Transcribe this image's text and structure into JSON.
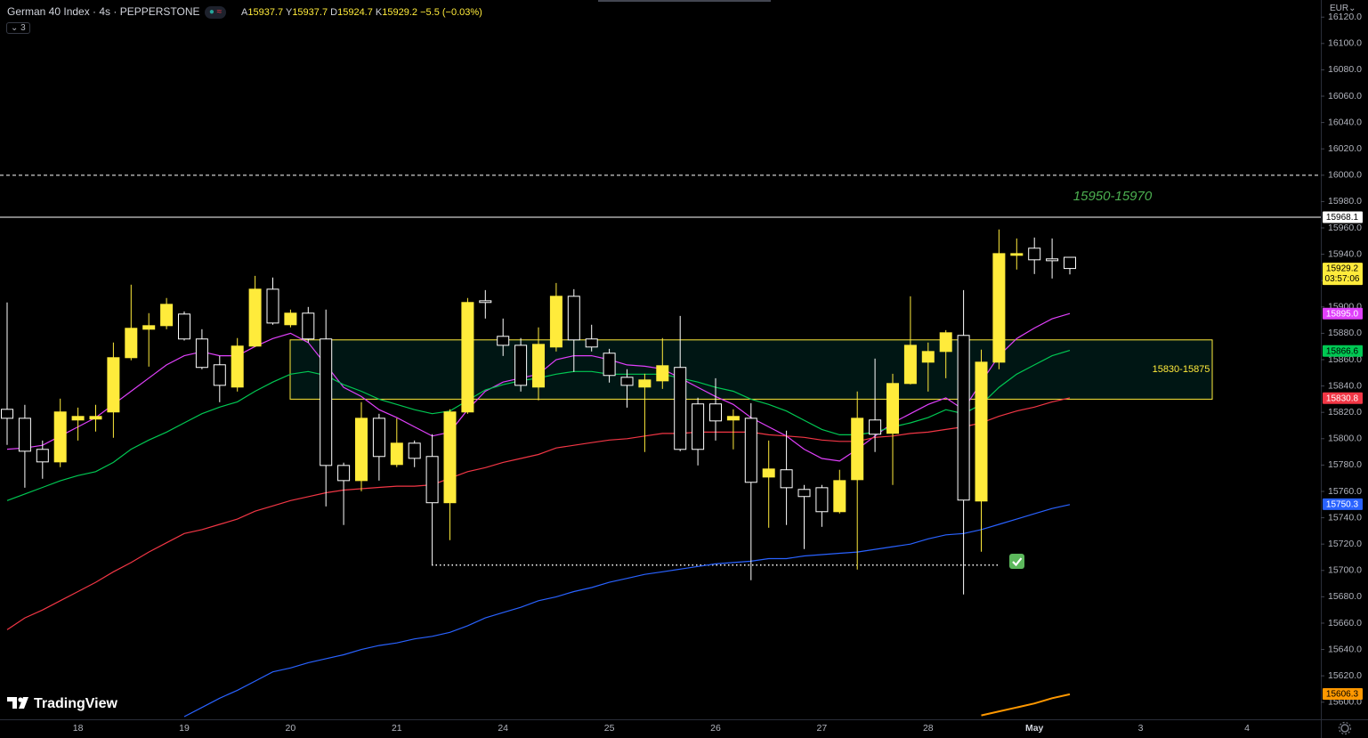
{
  "header": {
    "symbol": "German 40 Index · 4s · PEPPERSTONE",
    "ohlc": [
      {
        "key": "A",
        "value": "15937.7"
      },
      {
        "key": "Y",
        "value": "15937.7"
      },
      {
        "key": "D",
        "value": "15924.7"
      },
      {
        "key": "K",
        "value": "15929.2"
      }
    ],
    "change": "−5.5 (−0.03%)",
    "indicators": "3",
    "currency": "EUR",
    "logo": "TradingView"
  },
  "chart_data": {
    "type": "candlestick",
    "categories": [
      null,
      null,
      null,
      null,
      "18",
      null,
      null,
      null,
      null,
      null,
      "19",
      null,
      null,
      null,
      null,
      null,
      "20",
      null,
      null,
      null,
      null,
      null,
      "21",
      null,
      null,
      null,
      null,
      null,
      "24",
      null,
      null,
      null,
      null,
      null,
      "25",
      null,
      null,
      null,
      null,
      null,
      "26",
      null,
      null,
      null,
      null,
      null,
      "27",
      null,
      null,
      null,
      null,
      null,
      "28",
      null,
      null,
      null,
      null,
      null,
      "May",
      null,
      null,
      null,
      null,
      null,
      "3",
      null,
      null,
      null,
      null,
      null,
      "4",
      null,
      null,
      null
    ],
    "candles": {
      "up_color": "#ffeb3b",
      "down_color": "#ffffff",
      "open": [
        15822.3,
        15815.5,
        15791.9,
        15782.4,
        15814.2,
        15814.9,
        15820.3,
        15861.5,
        15883.1,
        15885.8,
        15894.6,
        15875.7,
        15856.1,
        15839.2,
        15870.3,
        15913.5,
        15886.5,
        15895.3,
        15875.7,
        15779.7,
        15768.2,
        15815.5,
        15780.4,
        15796.6,
        15786.5,
        15751.4,
        15820.3,
        15904.7,
        15877.7,
        15870.9,
        15839.2,
        15869.6,
        15908.1,
        15875.7,
        15864.9,
        15846.6,
        15839.2,
        15843.9,
        15854.1,
        15826.4,
        15826.4,
        15814.2,
        15815.5,
        15770.9,
        15776.4,
        15761.5,
        15762.8,
        15744.6,
        15768.9,
        15814.2,
        15804.1,
        15841.9,
        15858.1,
        15866.2,
        15878.4,
        15752.7,
        15858.1,
        15939.2,
        15944.6,
        15936.5,
        15937.7,
        null,
        null,
        null,
        null,
        null,
        null,
        null,
        null,
        null,
        null,
        null,
        null,
        null
      ],
      "high": [
        15903.4,
        15825.7,
        15798.6,
        15830.4,
        15823.6,
        15825.7,
        15873.0,
        15916.9,
        15895.3,
        15906.8,
        15896.6,
        15883.1,
        15862.8,
        15876.4,
        15923.6,
        15922.3,
        15898.0,
        15900.0,
        15898.0,
        15781.8,
        15827.7,
        15818.9,
        15815.5,
        15798.6,
        15803.4,
        15822.3,
        15906.8,
        15912.8,
        15891.2,
        15876.4,
        15884.5,
        15918.2,
        15913.5,
        15886.5,
        15868.2,
        15852.7,
        15849.3,
        15876.4,
        15893.2,
        15831.1,
        15845.9,
        15822.3,
        15827.0,
        15798.6,
        15806.1,
        15764.9,
        15764.9,
        15776.4,
        15835.8,
        15860.8,
        15849.3,
        15908.1,
        15873.0,
        15882.4,
        15912.8,
        15867.6,
        15958.8,
        15952.0,
        15952.7,
        15952.0,
        15937.7,
        null,
        null,
        null,
        null,
        null,
        null,
        null,
        null,
        null,
        null,
        null,
        null,
        null
      ],
      "low": [
        15795.3,
        15762.8,
        15769.6,
        15778.4,
        15798.6,
        15805.4,
        15800.7,
        15859.5,
        15854.7,
        15883.1,
        15874.5,
        15852.7,
        15827.7,
        15835.8,
        15869.6,
        15886.5,
        15884.5,
        15873.0,
        15748.6,
        15734.5,
        15760.1,
        15768.2,
        15778.4,
        15778.4,
        15704.1,
        15723.0,
        15818.9,
        15891.2,
        15862.8,
        15835.8,
        15829.1,
        15866.2,
        15850.7,
        15866.2,
        15842.6,
        15823.6,
        15789.9,
        15837.8,
        15790.5,
        15779.7,
        15798.6,
        15791.9,
        15692.6,
        15732.4,
        15734.5,
        15716.2,
        15733.1,
        15743.2,
        15700.7,
        15789.9,
        15764.9,
        15841.2,
        15835.8,
        15845.9,
        15681.8,
        15714.2,
        15852.7,
        15928.4,
        15925.0,
        15921.6,
        15924.7,
        null,
        null,
        null,
        null,
        null,
        null,
        null,
        null,
        null,
        null,
        null,
        null,
        null
      ],
      "close": [
        15815.5,
        15790.5,
        15782.4,
        15820.3,
        15816.9,
        15816.9,
        15861.5,
        15883.8,
        15885.8,
        15902.0,
        15875.7,
        15854.1,
        15840.5,
        15870.3,
        15913.5,
        15887.8,
        15895.3,
        15875.7,
        15779.7,
        15768.2,
        15815.5,
        15786.5,
        15796.6,
        15785.1,
        15751.4,
        15820.3,
        15903.4,
        15903.4,
        15870.9,
        15840.5,
        15871.6,
        15908.1,
        15875.0,
        15869.6,
        15848.0,
        15840.5,
        15844.6,
        15855.4,
        15791.9,
        15791.9,
        15813.5,
        15816.9,
        15766.9,
        15777.0,
        15762.8,
        15756.1,
        15744.6,
        15768.2,
        15815.5,
        15803.4,
        15841.9,
        15870.9,
        15866.2,
        15880.4,
        15753.4,
        15858.1,
        15940.5,
        15940.5,
        15935.8,
        15935.1,
        15929.2,
        null,
        null,
        null,
        null,
        null,
        null,
        null,
        null,
        null,
        null,
        null,
        null,
        null
      ]
    },
    "series": [
      {
        "color": "#e040fb",
        "values": [
          15792,
          15793,
          15795,
          15802,
          15809,
          15816,
          15826,
          15836,
          15846,
          15856,
          15863,
          15866,
          15863,
          15863,
          15870,
          15876,
          15880,
          15873,
          15856,
          15839,
          15832,
          15822,
          15816,
          15809,
          15802,
          15805,
          15822,
          15836,
          15843,
          15846,
          15849,
          15860,
          15863,
          15863,
          15860,
          15856,
          15855,
          15853,
          15846,
          15839,
          15832,
          15826,
          15816,
          15809,
          15802,
          15792,
          15785,
          15783,
          15792,
          15802,
          15812,
          15819,
          15826,
          15831,
          15822,
          15843,
          15863,
          15876,
          15884,
          15891,
          15895,
          null,
          null,
          null,
          null,
          null,
          null,
          null,
          null,
          null,
          null,
          null,
          null,
          null
        ]
      },
      {
        "color": "#00c853",
        "values": [
          15753,
          15758,
          15763,
          15768,
          15772,
          15775,
          15782,
          15792,
          15799,
          15805,
          15812,
          15819,
          15824,
          15828,
          15836,
          15843,
          15849,
          15851,
          15848,
          15841,
          15836,
          15830,
          15826,
          15822,
          15819,
          15821,
          15829,
          15837,
          15841,
          15844,
          15846,
          15849,
          15851,
          15851,
          15849,
          15849,
          15849,
          15849,
          15846,
          15843,
          15839,
          15836,
          15830,
          15826,
          15821,
          15814,
          15807,
          15803,
          15803,
          15805,
          15809,
          15812,
          15816,
          15822,
          15819,
          15826,
          15839,
          15849,
          15856,
          15863,
          15867,
          null,
          null,
          null,
          null,
          null,
          null,
          null,
          null,
          null,
          null,
          null,
          null,
          null
        ]
      },
      {
        "color": "#f23645",
        "values": [
          15655,
          15664,
          15670,
          15677,
          15684,
          15691,
          15699,
          15706,
          15714,
          15721,
          15728,
          15731,
          15735,
          15739,
          15745,
          15749,
          15753,
          15756,
          15759,
          15761,
          15762,
          15763,
          15764,
          15764,
          15765,
          15770,
          15775,
          15778,
          15782,
          15785,
          15788,
          15793,
          15795,
          15797,
          15799,
          15800,
          15802,
          15804,
          15804,
          15805,
          15805,
          15805,
          15805,
          15803,
          15802,
          15801,
          15799,
          15798,
          15798,
          15801,
          15802,
          15804,
          15805,
          15807,
          15809,
          15812,
          15817,
          15821,
          15824,
          15828,
          15831,
          null,
          null,
          null,
          null,
          null,
          null,
          null,
          null,
          null,
          null,
          null,
          null,
          null
        ]
      },
      {
        "color": "#2962ff",
        "values": [
          null,
          null,
          null,
          null,
          null,
          null,
          null,
          null,
          null,
          null,
          15589,
          15596,
          15603,
          15609,
          15616,
          15623,
          15626,
          15630,
          15633,
          15636,
          15640,
          15643,
          15645,
          15648,
          15650,
          15653,
          15658,
          15664,
          15668,
          15672,
          15677,
          15680,
          15684,
          15687,
          15691,
          15694,
          15697,
          15699,
          15701,
          15703,
          15705,
          15706,
          15707,
          15709,
          15709,
          15711,
          15712,
          15713,
          15714,
          15716,
          15718,
          15720,
          15724,
          15727,
          15728,
          15731,
          15735,
          15739,
          15743,
          15747,
          15750,
          null,
          null,
          null,
          null,
          null,
          null,
          null,
          null,
          null,
          null,
          null,
          null,
          null
        ]
      },
      {
        "color": "#ff9800",
        "values": [
          null,
          null,
          null,
          null,
          null,
          null,
          null,
          null,
          null,
          null,
          null,
          null,
          null,
          null,
          null,
          null,
          null,
          null,
          null,
          null,
          null,
          null,
          null,
          null,
          null,
          null,
          null,
          null,
          null,
          null,
          null,
          null,
          null,
          null,
          null,
          null,
          null,
          null,
          null,
          null,
          null,
          null,
          null,
          null,
          null,
          null,
          null,
          null,
          null,
          null,
          null,
          null,
          null,
          null,
          null,
          15590,
          15593,
          15596,
          15599,
          15603,
          15606,
          null,
          null,
          null,
          null,
          null,
          null,
          null,
          null,
          null,
          null,
          null,
          null,
          null
        ]
      }
    ],
    "ylim": [
      15587,
      16133
    ],
    "yticks": [
      {
        "value": 15600,
        "label": "15600.0"
      },
      {
        "value": 15620,
        "label": "15620.0"
      },
      {
        "value": 15640,
        "label": "15640.0"
      },
      {
        "value": 15660,
        "label": "15660.0"
      },
      {
        "value": 15680,
        "label": "15680.0"
      },
      {
        "value": 15700,
        "label": "15700.0"
      },
      {
        "value": 15720,
        "label": "15720.0"
      },
      {
        "value": 15740,
        "label": "15740.0"
      },
      {
        "value": 15760,
        "label": "15760.0"
      },
      {
        "value": 15780,
        "label": "15780.0"
      },
      {
        "value": 15800,
        "label": "15800.0"
      },
      {
        "value": 15820,
        "label": "15820.0"
      },
      {
        "value": 15840,
        "label": "15840.0"
      },
      {
        "value": 15860,
        "label": "15860.0"
      },
      {
        "value": 15880,
        "label": "15880.0"
      },
      {
        "value": 15900,
        "label": "15900.0"
      },
      {
        "value": 15920,
        "label": "15920.0"
      },
      {
        "value": 15940,
        "label": "15940.0"
      },
      {
        "value": 15960,
        "label": "15960.0"
      },
      {
        "value": 15980,
        "label": "15980.0"
      },
      {
        "value": 16000,
        "label": "16000.0"
      },
      {
        "value": 16020,
        "label": "16020.0"
      },
      {
        "value": 16040,
        "label": "16040.0"
      },
      {
        "value": 16060,
        "label": "16060.0"
      },
      {
        "value": 16080,
        "label": "16080.0"
      },
      {
        "value": 16100,
        "label": "16100.0"
      },
      {
        "value": 16120,
        "label": "16120.0"
      }
    ],
    "price_markers": [
      {
        "value": 15968.1,
        "color": "#ffffff",
        "text_color": "#000000"
      },
      {
        "value": 15929.2,
        "color": "#ffeb3b",
        "text_color": "#000000",
        "countdown": "03:57:06"
      },
      {
        "value": 15895.0,
        "label": "15895.0",
        "color": "#e040fb",
        "text_color": "#ffffff"
      },
      {
        "value": 15866.6,
        "color": "#00c853",
        "text_color": "#000000"
      },
      {
        "value": 15830.8,
        "color": "#f23645",
        "text_color": "#ffffff"
      },
      {
        "value": 15750.3,
        "color": "#2962ff",
        "text_color": "#ffffff"
      },
      {
        "value": 15606.3,
        "color": "#ff9800",
        "text_color": "#000000"
      }
    ],
    "lines": [
      {
        "value": 16000,
        "style": "dashed"
      },
      {
        "value": 15968.1,
        "style": "solid"
      }
    ],
    "support": 15704.1,
    "zone": {
      "low": 15830,
      "high": 15875,
      "label": "15830-15875",
      "color": "#ffeb3b"
    },
    "annotation": "15950-15970"
  }
}
